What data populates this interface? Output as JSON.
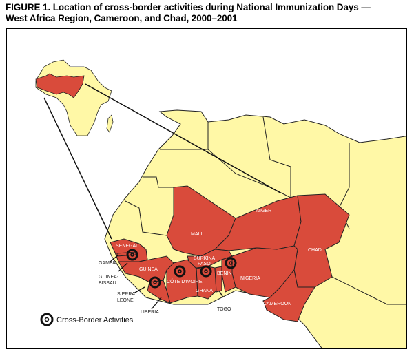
{
  "title": {
    "line1": "FIGURE 1. Location of cross-border activities during National Immunization Days —",
    "line2": "West Africa Region, Cameroon, and Chad, 2000–2001"
  },
  "colors": {
    "highlight": "#d94b3b",
    "other_land": "#fff8a6",
    "water": "#ffffff",
    "border": "#222222"
  },
  "countries_highlighted": {
    "mali": "MALI",
    "niger": "NIGER",
    "chad": "CHAD",
    "senegal": "SENEGAL",
    "guinea": "GUINEA",
    "burkina_faso_1": "BURKINA",
    "burkina_faso_2": "FASO",
    "benin": "BENIN",
    "nigeria": "NIGERIA",
    "cote_divoire": "CÔTE D'IVOIRE",
    "ghana": "GHANA",
    "cameroon": "CAMEROON"
  },
  "callouts": {
    "gambia": "GAMBIA",
    "guinea_bissau_1": "GUINEA-",
    "guinea_bissau_2": "BISSAU",
    "sierra_leone_1": "SIERRA",
    "sierra_leone_2": "LEONE",
    "liberia": "LIBERIA",
    "togo": "TOGO"
  },
  "legend": {
    "icon": "target-rings-icon",
    "label": "Cross-Border Activities"
  }
}
